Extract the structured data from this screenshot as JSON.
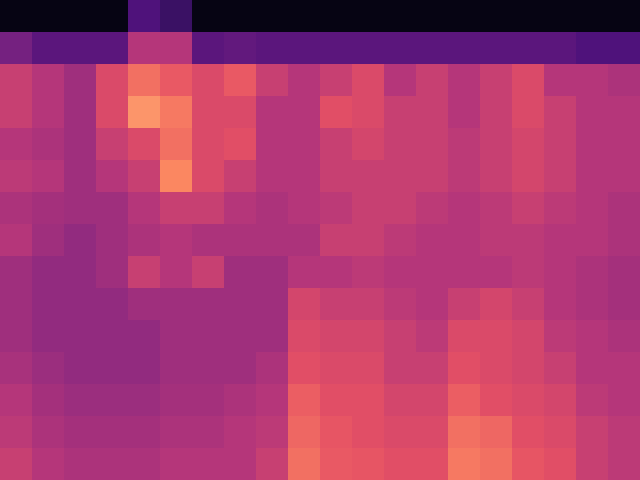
{
  "chart_data": {
    "type": "heatmap",
    "tick_labels": false,
    "zlim": [
      0,
      1
    ],
    "cells": [
      [
        0.03,
        0.03,
        0.03,
        0.03,
        0.25,
        0.2,
        0.03,
        0.03,
        0.03,
        0.03,
        0.03,
        0.03,
        0.03,
        0.03,
        0.03,
        0.03,
        0.03,
        0.03,
        0.03,
        0.03
      ],
      [
        0.35,
        0.28,
        0.28,
        0.28,
        0.5,
        0.5,
        0.28,
        0.3,
        0.28,
        0.28,
        0.28,
        0.28,
        0.28,
        0.28,
        0.28,
        0.28,
        0.28,
        0.28,
        0.25,
        0.25
      ],
      [
        0.55,
        0.5,
        0.45,
        0.6,
        0.7,
        0.65,
        0.6,
        0.65,
        0.55,
        0.5,
        0.55,
        0.6,
        0.5,
        0.55,
        0.5,
        0.55,
        0.6,
        0.5,
        0.5,
        0.48
      ],
      [
        0.55,
        0.5,
        0.45,
        0.6,
        0.78,
        0.72,
        0.6,
        0.6,
        0.5,
        0.5,
        0.62,
        0.6,
        0.55,
        0.55,
        0.5,
        0.55,
        0.6,
        0.55,
        0.5,
        0.5
      ],
      [
        0.5,
        0.48,
        0.45,
        0.55,
        0.6,
        0.7,
        0.6,
        0.62,
        0.5,
        0.5,
        0.55,
        0.58,
        0.55,
        0.55,
        0.52,
        0.55,
        0.58,
        0.55,
        0.5,
        0.5
      ],
      [
        0.52,
        0.5,
        0.45,
        0.5,
        0.55,
        0.75,
        0.6,
        0.55,
        0.5,
        0.5,
        0.55,
        0.55,
        0.55,
        0.55,
        0.52,
        0.55,
        0.58,
        0.55,
        0.5,
        0.5
      ],
      [
        0.48,
        0.46,
        0.45,
        0.45,
        0.5,
        0.55,
        0.55,
        0.5,
        0.48,
        0.5,
        0.52,
        0.55,
        0.55,
        0.52,
        0.5,
        0.52,
        0.55,
        0.52,
        0.5,
        0.48
      ],
      [
        0.5,
        0.45,
        0.42,
        0.45,
        0.48,
        0.5,
        0.48,
        0.48,
        0.48,
        0.48,
        0.55,
        0.55,
        0.52,
        0.5,
        0.5,
        0.52,
        0.52,
        0.5,
        0.5,
        0.48
      ],
      [
        0.45,
        0.42,
        0.42,
        0.45,
        0.55,
        0.5,
        0.55,
        0.45,
        0.45,
        0.5,
        0.5,
        0.52,
        0.5,
        0.5,
        0.5,
        0.5,
        0.52,
        0.5,
        0.48,
        0.46
      ],
      [
        0.45,
        0.42,
        0.42,
        0.42,
        0.45,
        0.45,
        0.45,
        0.45,
        0.45,
        0.58,
        0.55,
        0.55,
        0.52,
        0.5,
        0.55,
        0.58,
        0.55,
        0.5,
        0.48,
        0.46
      ],
      [
        0.45,
        0.42,
        0.42,
        0.42,
        0.42,
        0.45,
        0.45,
        0.45,
        0.45,
        0.6,
        0.58,
        0.58,
        0.55,
        0.52,
        0.6,
        0.6,
        0.58,
        0.52,
        0.5,
        0.48
      ],
      [
        0.47,
        0.44,
        0.42,
        0.42,
        0.42,
        0.45,
        0.45,
        0.45,
        0.48,
        0.62,
        0.6,
        0.6,
        0.55,
        0.55,
        0.62,
        0.6,
        0.58,
        0.55,
        0.5,
        0.5
      ],
      [
        0.5,
        0.46,
        0.44,
        0.44,
        0.44,
        0.46,
        0.46,
        0.48,
        0.5,
        0.66,
        0.62,
        0.62,
        0.58,
        0.58,
        0.66,
        0.62,
        0.6,
        0.58,
        0.52,
        0.5
      ],
      [
        0.52,
        0.48,
        0.46,
        0.46,
        0.46,
        0.48,
        0.48,
        0.5,
        0.52,
        0.68,
        0.64,
        0.62,
        0.6,
        0.6,
        0.7,
        0.68,
        0.62,
        0.6,
        0.55,
        0.52
      ],
      [
        0.55,
        0.5,
        0.48,
        0.48,
        0.48,
        0.5,
        0.5,
        0.5,
        0.55,
        0.7,
        0.65,
        0.64,
        0.62,
        0.62,
        0.72,
        0.7,
        0.64,
        0.62,
        0.55,
        0.52
      ]
    ]
  }
}
